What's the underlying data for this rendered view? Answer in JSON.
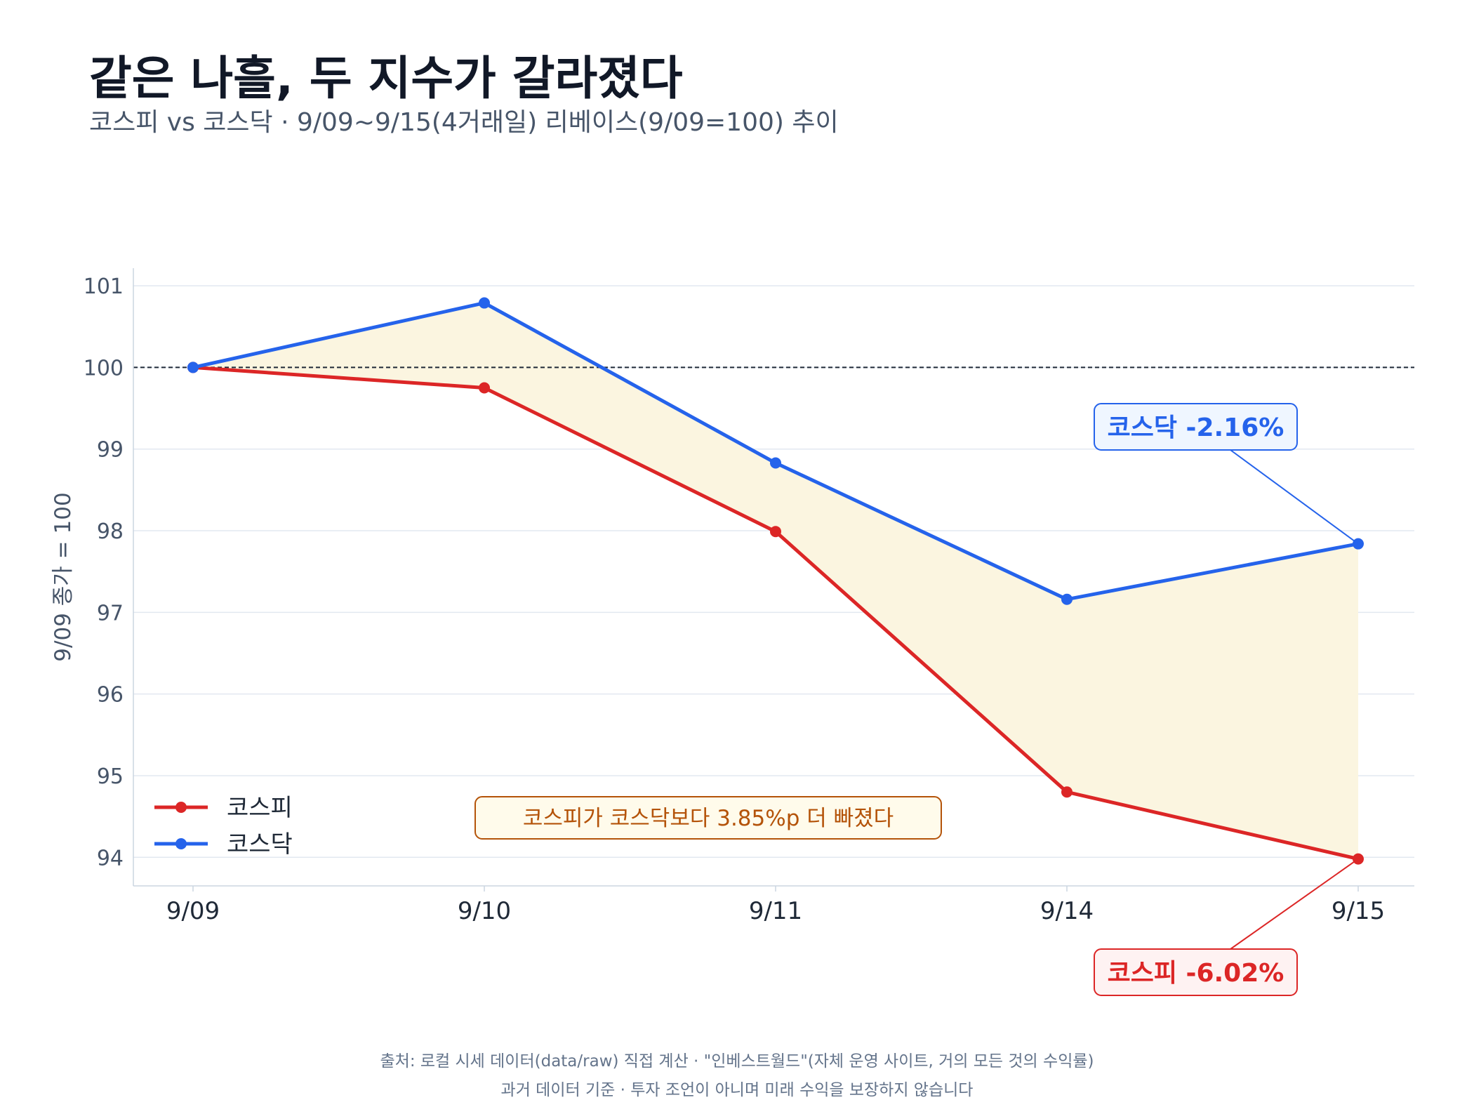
{
  "title": "같은 나흘, 두 지수가 갈라졌다",
  "subtitle": "코스피 vs 코스닥 · 9/09~9/15(4거래일) 리베이스(9/09=100) 추이",
  "footer": {
    "line1": "출처: 로컬 시세 데이터(data/raw) 직접 계산 · \"인베스트월드\"(자체 운영 사이트, 거의 모든 것의 수익률)",
    "line2": "과거 데이터 기준 · 투자 조언이 아니며 미래 수익을 보장하지 않습니다"
  },
  "chart_data": {
    "type": "line",
    "categories": [
      "9/09",
      "9/10",
      "9/11",
      "9/14",
      "9/15"
    ],
    "ylabel": "9/09 종가 = 100",
    "xlabel": "",
    "ylim": [
      93.65,
      101.13
    ],
    "yticks": [
      94,
      95,
      96,
      97,
      98,
      99,
      100,
      101
    ],
    "grid": "horizontal",
    "reference_line": 100,
    "gap_fill_color": "#fbf5e0",
    "legend_position": "lower-left",
    "series": [
      {
        "name": "코스피",
        "color": "#dc2626",
        "values": [
          100,
          99.75,
          97.99,
          94.8,
          93.98
        ]
      },
      {
        "name": "코스닥",
        "color": "#2563eb",
        "values": [
          100,
          100.79,
          98.83,
          97.16,
          97.84
        ]
      }
    ],
    "annotations": {
      "kosdaq_end": {
        "text": "코스닥 -2.16%",
        "color": "#2563eb",
        "bg": "#eff6ff"
      },
      "kospi_end": {
        "text": "코스피 -6.02%",
        "color": "#dc2626",
        "bg": "#fef2f2"
      },
      "gap": {
        "text": "코스피가 코스닥보다 3.85%p 더 빠졌다",
        "color": "#b45309",
        "bg": "#fffbeb"
      }
    }
  }
}
